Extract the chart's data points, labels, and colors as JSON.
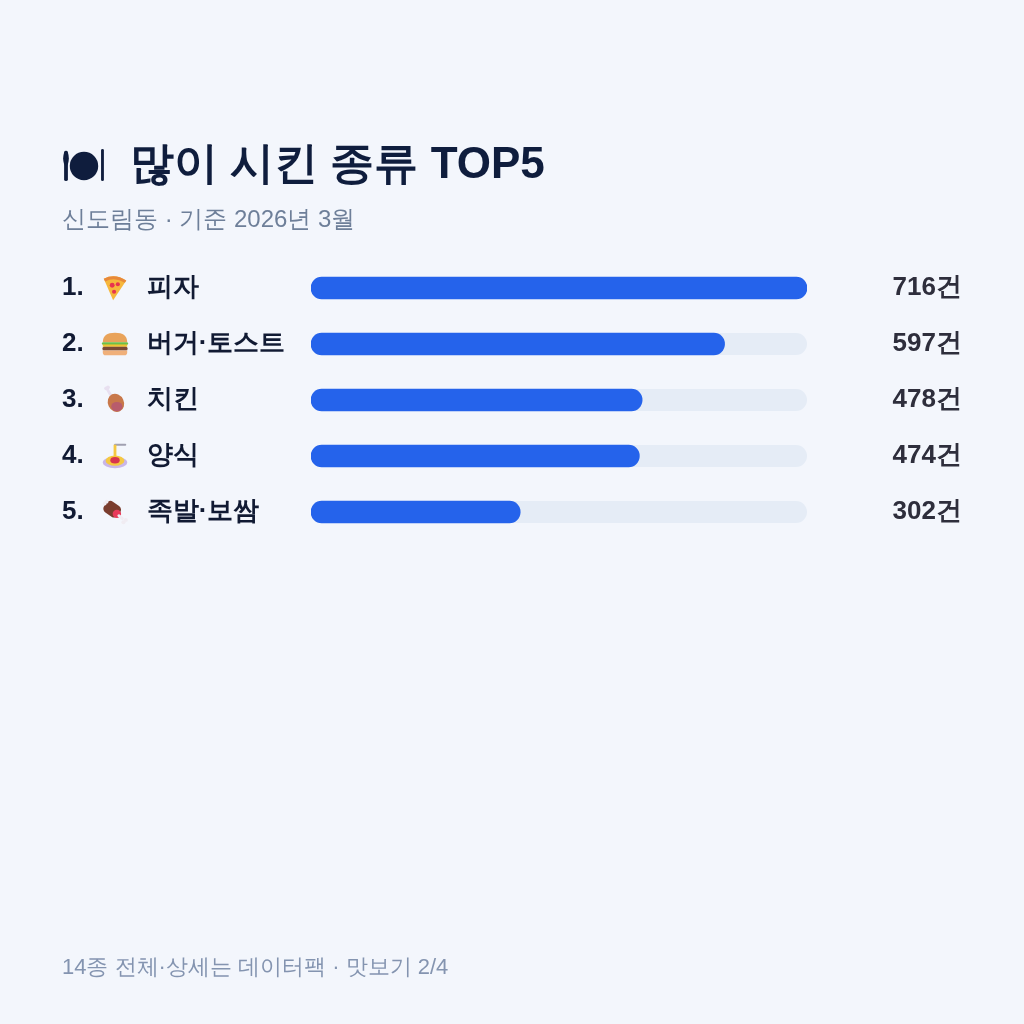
{
  "chart_data": {
    "type": "bar",
    "orientation": "horizontal",
    "title": "많이 시킨 종류 TOP5",
    "subtitle": "신도림동 · 기준 2026년 3월",
    "categories": [
      "1. 피자",
      "2. 버거·토스트",
      "3. 치킨",
      "4. 양식",
      "5. 족발·보쌈"
    ],
    "values": [
      716,
      597,
      478,
      474,
      302
    ],
    "value_labels": [
      "716건",
      "597건",
      "478건",
      "474건",
      "302건"
    ],
    "color": "#2563eb",
    "xlim": [
      0,
      716
    ],
    "tick_labels": "y",
    "annotations": [
      "14종 전체·상세는 데이터팩 · 맛보기 2/4"
    ]
  }
}
